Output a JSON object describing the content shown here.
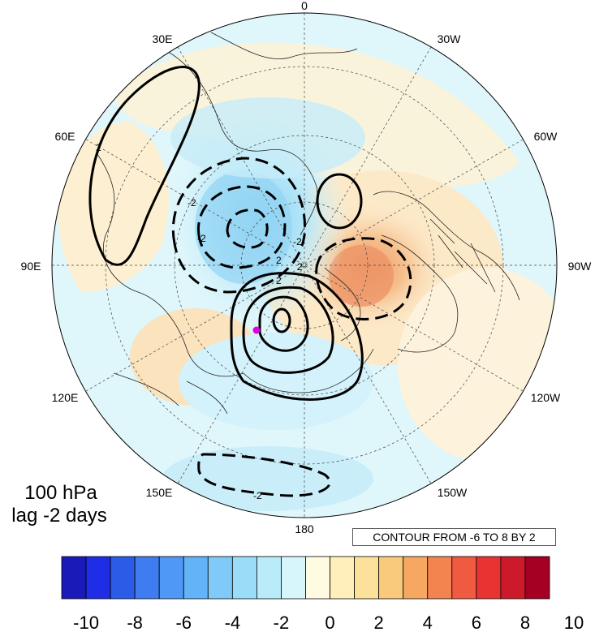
{
  "map": {
    "projection": "north-polar-stereographic",
    "longitude_labels": {
      "top": "0",
      "top_right_1": "30W",
      "top_left_1": "30E",
      "right_upper": "60W",
      "left_upper": "60E",
      "right": "90W",
      "left": "90E",
      "right_lower": "120W",
      "left_lower": "120E",
      "bottom_right": "150W",
      "bottom_left": "150E",
      "bottom": "180"
    },
    "contour_labels": [
      "2",
      "-2",
      "-2",
      "2",
      "2",
      "-2",
      "2",
      "-2"
    ],
    "marker_color": "#e000e0"
  },
  "info": {
    "level": "100 hPa",
    "lag": "lag -2 days",
    "contour_note": "CONTOUR FROM -6 TO 8 BY 2"
  },
  "colorbar": {
    "colors": [
      "#1a1ab8",
      "#1f2ee6",
      "#2c5be8",
      "#3e7cf0",
      "#4f98f5",
      "#62b3f7",
      "#7fcaf8",
      "#9bdcf8",
      "#b9ebf8",
      "#d6f6fb",
      "#fffbe0",
      "#fff0bb",
      "#fce19b",
      "#f9c97c",
      "#f6a863",
      "#f3834f",
      "#ef5a40",
      "#e83332",
      "#cc1a2a",
      "#a50024"
    ],
    "tick_labels": [
      "-10",
      "-8",
      "-6",
      "-4",
      "-2",
      "0",
      "2",
      "4",
      "6",
      "8",
      "10"
    ]
  }
}
